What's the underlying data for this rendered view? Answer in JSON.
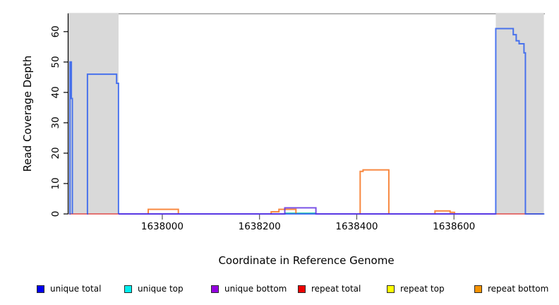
{
  "chart_data": {
    "type": "line",
    "title": "",
    "xlabel": "Coordinate in Reference Genome",
    "ylabel": "Read Coverage Depth",
    "x_range": [
      1637807,
      1638787
    ],
    "y_range": [
      0,
      66
    ],
    "x_ticks": [
      1638000,
      1638200,
      1638400,
      1638600
    ],
    "y_ticks": [
      0,
      10,
      20,
      30,
      40,
      50,
      60
    ],
    "grid": "off",
    "legend_position": "bottom",
    "frame": {
      "top_border_color": "#999999",
      "axis_color": "#000000",
      "shade_color": "#d9d9d9"
    },
    "shaded_regions": [
      {
        "name": "left-repeat-region",
        "x0": 1637807,
        "x1": 1637910
      },
      {
        "name": "right-repeat-region",
        "x0": 1638686,
        "x1": 1638785
      }
    ],
    "series": [
      {
        "name": "repeat total",
        "plot_color": "#dd2222",
        "stroke_width": 1.5,
        "paths": [
          [
            [
              1637808,
              0
            ],
            [
              1637910,
              0
            ]
          ],
          [
            [
              1638686,
              0
            ],
            [
              1638784,
              0
            ]
          ]
        ]
      },
      {
        "name": "repeat top",
        "plot_color": "#f0e000",
        "stroke_width": 1.5,
        "paths": [
          [
            [
              1638252,
              0.3
            ],
            [
              1638316,
              0.3
            ]
          ]
        ]
      },
      {
        "name": "unique top",
        "plot_color": "#00c8d0",
        "stroke_width": 1.5,
        "paths": [
          [
            [
              1638252,
              0.3
            ],
            [
              1638316,
              0.3
            ]
          ]
        ]
      },
      {
        "name": "repeat bottom",
        "plot_color": "#f66a10",
        "stroke_width": 2,
        "paths": [
          [
            [
              1637970,
              0
            ],
            [
              1637971,
              1.5
            ],
            [
              1638033,
              0
            ]
          ],
          [
            [
              1638223,
              0
            ],
            [
              1638224,
              0.7
            ],
            [
              1638240,
              1.5
            ],
            [
              1638275,
              0
            ]
          ],
          [
            [
              1638406,
              0
            ],
            [
              1638407,
              14
            ],
            [
              1638413,
              14.5
            ],
            [
              1638466,
              0
            ]
          ],
          [
            [
              1638560,
              0
            ],
            [
              1638561,
              1
            ],
            [
              1638592,
              0.5
            ],
            [
              1638601,
              0
            ]
          ]
        ]
      },
      {
        "name": "unique total",
        "plot_color": "#2458f0",
        "stroke_width": 2,
        "paths": [
          [
            [
              1637809,
              0
            ],
            [
              1637810,
              50
            ],
            [
              1637813,
              38
            ],
            [
              1637815,
              0
            ]
          ],
          [
            [
              1637845,
              0
            ],
            [
              1637846,
              46
            ],
            [
              1637906,
              43
            ],
            [
              1637910,
              0
            ]
          ],
          [
            [
              1637910,
              0
            ],
            [
              1638686,
              61
            ],
            [
              1638722,
              59
            ],
            [
              1638728,
              57
            ],
            [
              1638734,
              56
            ],
            [
              1638744,
              53
            ],
            [
              1638747,
              0
            ],
            [
              1638786,
              0
            ]
          ]
        ]
      },
      {
        "name": "unique bottom",
        "plot_color": "#5a28e0",
        "stroke_width": 2,
        "paths": [
          [
            [
              1637910,
              0
            ],
            [
              1638252,
              2
            ],
            [
              1638316,
              0
            ],
            [
              1638686,
              0
            ]
          ]
        ]
      }
    ]
  },
  "y_axis": {
    "label": "Read Coverage Depth"
  },
  "x_axis": {
    "label": "Coordinate in Reference Genome"
  },
  "legend": {
    "items": [
      {
        "label": "unique total",
        "color": "#0000ee"
      },
      {
        "label": "unique top",
        "color": "#00eeee"
      },
      {
        "label": "unique bottom",
        "color": "#9400e0"
      },
      {
        "label": "repeat total",
        "color": "#ee0000"
      },
      {
        "label": "repeat top",
        "color": "#ffff00"
      },
      {
        "label": "repeat bottom",
        "color": "#f59300"
      }
    ]
  }
}
